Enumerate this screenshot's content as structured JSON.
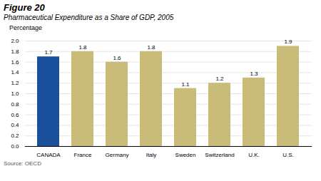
{
  "chart_data": {
    "type": "bar",
    "title": "Figure 20",
    "subtitle": "Pharmaceutical Expenditure as a Share of GDP, 2005",
    "ylabel": "Percentage",
    "source": "Source: OECD",
    "categories": [
      "CANADA",
      "France",
      "Germany",
      "Italy",
      "Sweden",
      "Switzerland",
      "U.K.",
      "U.S."
    ],
    "values": [
      1.7,
      1.8,
      1.6,
      1.8,
      1.1,
      1.2,
      1.3,
      1.9
    ],
    "colors": [
      "#1a4f9c",
      "#c9bb78",
      "#c9bb78",
      "#c9bb78",
      "#c9bb78",
      "#c9bb78",
      "#c9bb78",
      "#c9bb78"
    ],
    "ylim": [
      0.0,
      2.0
    ],
    "yticks": [
      {
        "value": 0,
        "label": "0.0"
      },
      0.2,
      0.4,
      0.6,
      0.8,
      {
        "value": 1,
        "label": "1.0"
      },
      1.2,
      1.4,
      1.6,
      1.8,
      {
        "value": 2,
        "label": "2.0"
      }
    ],
    "grid": true,
    "data_labels": true
  }
}
